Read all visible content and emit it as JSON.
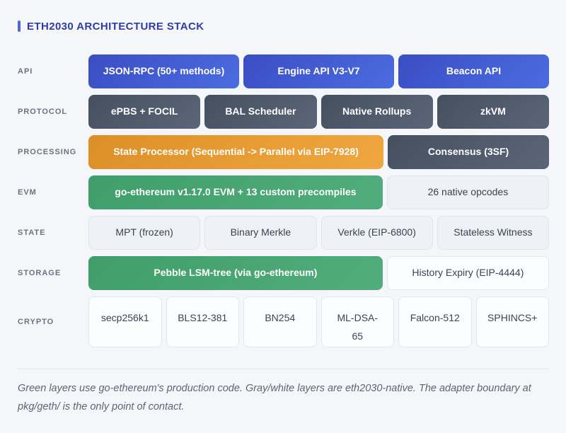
{
  "header": {
    "title": "ETH2030 ARCHITECTURE STACK"
  },
  "palette": {
    "accent_blue": "#4e68d9",
    "title_navy": "#2f3da5",
    "api_blue": "#3d50c7",
    "protocol_slate": "#4b5668",
    "processing_orange": "#e69a2f",
    "goethereum_green": "#46a572",
    "layer_gray": "#eef1f5",
    "layer_white": "#fcfdfe"
  },
  "stack": {
    "rows": [
      {
        "label": "API",
        "cells": [
          {
            "text": "JSON-RPC (50+ methods)"
          },
          {
            "text": "Engine API V3-V7"
          },
          {
            "text": "Beacon API"
          }
        ]
      },
      {
        "label": "PROTOCOL",
        "cells": [
          {
            "text": "ePBS + FOCIL"
          },
          {
            "text": "BAL Scheduler"
          },
          {
            "text": "Native Rollups"
          },
          {
            "text": "zkVM"
          }
        ]
      },
      {
        "label": "PROCESSING",
        "cells": [
          {
            "text": "State Processor (Sequential -> Parallel via EIP-7928)"
          },
          {
            "text": "Consensus (3SF)"
          }
        ]
      },
      {
        "label": "EVM",
        "cells": [
          {
            "text": "go-ethereum v1.17.0 EVM + 13 custom precompiles"
          },
          {
            "text": "26 native opcodes"
          }
        ]
      },
      {
        "label": "STATE",
        "cells": [
          {
            "text": "MPT (frozen)"
          },
          {
            "text": "Binary Merkle"
          },
          {
            "text": "Verkle (EIP-6800)"
          },
          {
            "text": "Stateless Witness"
          }
        ]
      },
      {
        "label": "STORAGE",
        "cells": [
          {
            "text": "Pebble LSM-tree (via go-ethereum)"
          },
          {
            "text": "History Expiry (EIP-4444)"
          }
        ]
      },
      {
        "label": "CRYPTO",
        "cells": [
          {
            "text": "secp256k1"
          },
          {
            "text": "BLS12-381"
          },
          {
            "text": "BN254"
          },
          {
            "text": "ML-DSA-65"
          },
          {
            "text": "Falcon-512"
          },
          {
            "text": "SPHINCS+"
          }
        ]
      }
    ]
  },
  "footer": {
    "note": "Green layers use go-ethereum's production code. Gray/white layers are eth2030-native. The adapter boundary at pkg/geth/ is the only point of contact."
  }
}
